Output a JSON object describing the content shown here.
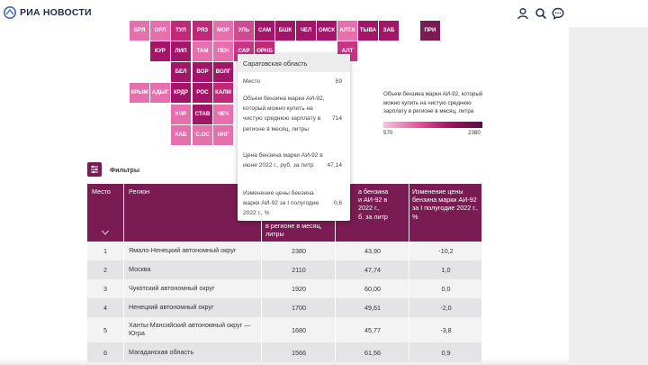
{
  "header": {
    "logo_text": "РИА НОВОСТИ",
    "icons": [
      "user-icon",
      "search-icon",
      "chat-icon"
    ]
  },
  "map": {
    "tiles": [
      {
        "label": "БРЯ",
        "color": "#e670ad"
      },
      {
        "label": "ОРЛ",
        "color": "#e670ad"
      },
      {
        "label": "ТУЛ",
        "color": "#bf2978"
      },
      {
        "label": "РЯЗ",
        "color": "#bf2978"
      },
      {
        "label": "МОР",
        "color": "#e670ad"
      },
      {
        "label": "УЛЬ",
        "color": "#d04a92"
      },
      {
        "label": "САМ",
        "color": "#a31569"
      },
      {
        "label": "БШК",
        "color": "#a31569"
      },
      {
        "label": "ЧЕЛ",
        "color": "#a31569"
      },
      {
        "label": "ОМСК",
        "color": "#a31569"
      },
      {
        "label": "АЛТ.К",
        "color": "#e670ad"
      },
      {
        "label": "ТЫВА",
        "color": "#a31569"
      },
      {
        "label": "ЗАБ",
        "color": "#a31569"
      },
      {
        "label": "ПРИ",
        "color": "#7a1b54"
      },
      {
        "label": "КУР",
        "color": "#a31569"
      },
      {
        "label": "ЛИП",
        "color": "#a31569"
      },
      {
        "label": "ТАМ",
        "color": "#e670ad"
      },
      {
        "label": "ПЕН",
        "color": "#e670ad"
      },
      {
        "label": "САР",
        "color": "#c83486"
      },
      {
        "label": "ОРНБ",
        "color": "#bf2978"
      },
      {
        "label": "АЛТ",
        "color": "#c83486"
      },
      {
        "label": "БЕЛ",
        "color": "#a31569"
      },
      {
        "label": "ВОР",
        "color": "#a31569"
      },
      {
        "label": "ВОЛГ",
        "color": "#a31569"
      },
      {
        "label": "КРЫМ",
        "color": "#e670ad"
      },
      {
        "label": "АДЫГ",
        "color": "#e670ad"
      },
      {
        "label": "КРДР",
        "color": "#a31569"
      },
      {
        "label": "РОС",
        "color": "#a31569"
      },
      {
        "label": "КАЛМ",
        "color": "#bf2978"
      },
      {
        "label": "КЧР",
        "color": "#e670ad"
      },
      {
        "label": "СТАВ",
        "color": "#a31569"
      },
      {
        "label": "ЧЕЧ",
        "color": "#e670ad"
      },
      {
        "label": "КАБ",
        "color": "#e670ad"
      },
      {
        "label": "С.ОС",
        "color": "#e670ad"
      },
      {
        "label": "ИНГ",
        "color": "#e670ad"
      }
    ]
  },
  "legend": {
    "text": "Объем бензина марки АИ-92, который можно купить на чистую среднюю зарплату в регионе в месяц, литра",
    "min": "570",
    "max": "2380"
  },
  "tooltip": {
    "title": "Саратовская область",
    "rows": [
      {
        "label": "Место",
        "value": "59"
      },
      {
        "label": "Объем бензина марки АИ-92, который можно купить на чистую среднюю зарплату в регионе в месяц, литры",
        "value": "714"
      },
      {
        "label": "Цена бензина марки АИ-92 в июне 2022 г., руб. за литр",
        "value": "47,14"
      },
      {
        "label": "Изменение цены бензина марки АИ-92 за I полугодие 2022 г., %",
        "value": "0,6"
      }
    ]
  },
  "filters": {
    "label": "Фильтры"
  },
  "table": {
    "headers": {
      "rank": "Место",
      "region": "Регион",
      "v1_visible": "в регионе в месяц, литры",
      "v2_top": "а бензина",
      "v2_mid": "и АИ-92 в",
      "v2_bot": "2022 г.,",
      "v2_last": "б. за литр",
      "v3": "Изменение цены бензина марки АИ-92 за I полугодие 2022 г., %"
    },
    "rows": [
      {
        "rank": "1",
        "region": "Ямало-Ненецкий автономный округ",
        "v1": "2380",
        "v2": "43,90",
        "v3": "-10,2"
      },
      {
        "rank": "2",
        "region": "Москва",
        "v1": "2110",
        "v2": "47,74",
        "v3": "1,0"
      },
      {
        "rank": "3",
        "region": "Чукотский автономный округ",
        "v1": "1920",
        "v2": "60,00",
        "v3": "0,0"
      },
      {
        "rank": "4",
        "region": "Ненецкий автономный округ",
        "v1": "1700",
        "v2": "49,61",
        "v3": "-2,0"
      },
      {
        "rank": "5",
        "region": "Ханты-Мансийский автономный округ — Югра",
        "v1": "1680",
        "v2": "45,77",
        "v3": "-3,8"
      },
      {
        "rank": "6",
        "region": "Магаданская область",
        "v1": "1566",
        "v2": "61,56",
        "v3": "0,9"
      }
    ]
  },
  "colors": {
    "accent": "#7a1b54",
    "row_light": "#f3f3f4",
    "row_dark": "#e4e4e6"
  }
}
